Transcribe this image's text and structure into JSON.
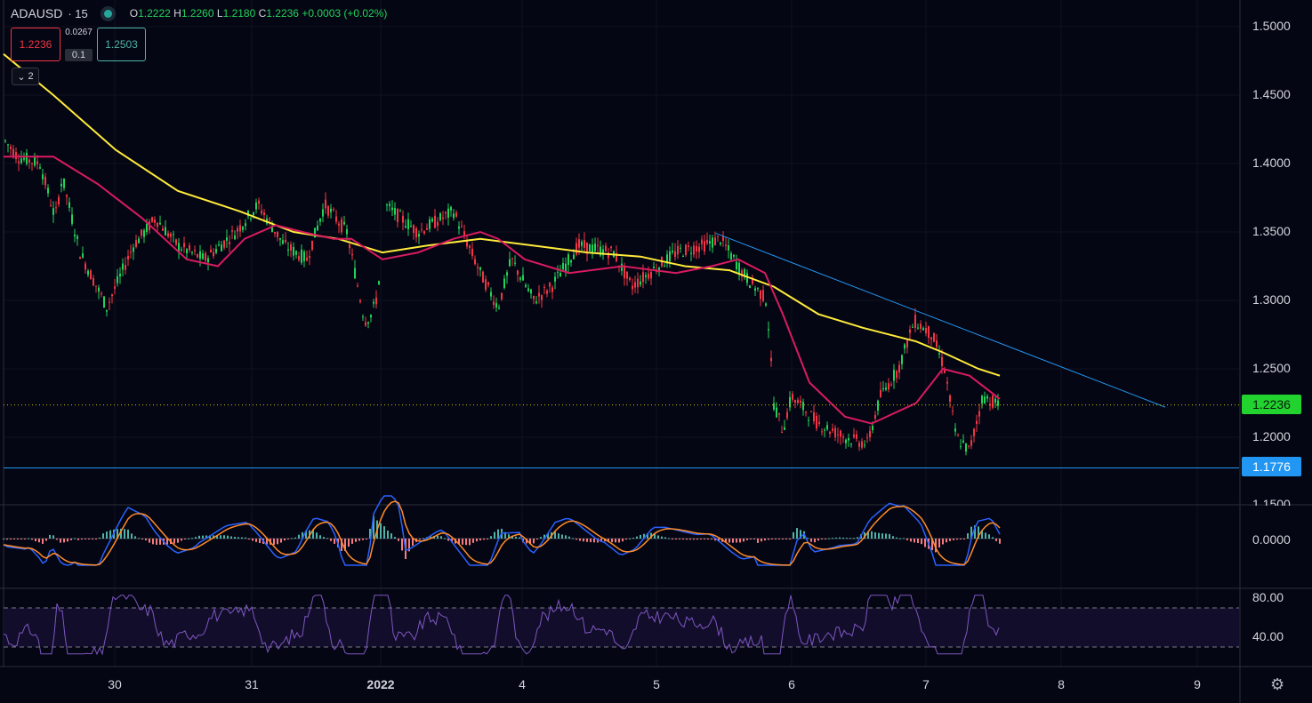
{
  "header": {
    "symbol": "ADAUSD",
    "interval": "· 15",
    "open_label": "O",
    "open": "1.2222",
    "high_label": "H",
    "high": "1.2260",
    "low_label": "L",
    "low": "1.2180",
    "close_label": "C",
    "close": "1.2236",
    "change": "+0.0003 (+0.02%)"
  },
  "trade_panel": {
    "sell_price": "1.2236",
    "spread": "0.0267",
    "quantity": "0.1",
    "buy_price": "1.2503"
  },
  "indicators_collapse": {
    "count": "2"
  },
  "price_axis": [
    "1.5000",
    "1.4500",
    "1.4000",
    "1.3500",
    "1.3000",
    "1.2500",
    "1.2000",
    "1.1500"
  ],
  "price_tags": {
    "last": "1.2236",
    "horizontal_line": "1.1776"
  },
  "macd_axis": "0.0000",
  "rsi_axis": [
    "80.00",
    "40.00"
  ],
  "time_axis": [
    "30",
    "31",
    "2022",
    "4",
    "5",
    "6",
    "7",
    "8",
    "9"
  ],
  "colors": {
    "background": "#050613",
    "up": "#22d35b",
    "down": "#f23645",
    "ma_slow": "#ffeb3b",
    "ma_fast": "#d81b60",
    "trendline": "#2196f3",
    "rsi": "#7e57c2"
  },
  "chart_data": {
    "type": "line",
    "ylim": [
      1.145,
      1.515
    ],
    "x_range": [
      "29 Dec 2021 (approx.)",
      "9 Jan 2022"
    ],
    "last_price": 1.2236,
    "support_line": 1.1776,
    "trendline": {
      "start": [
        "5 Jan (late)",
        1.349
      ],
      "end": [
        "8 Jan (late)",
        1.222
      ]
    },
    "price_path": [
      [
        "start",
        1.418
      ],
      [
        "29 Dec",
        1.405
      ],
      [
        "29 Dec",
        1.36
      ],
      [
        "29 Dec",
        1.39
      ],
      [
        "29 Dec",
        1.335
      ],
      [
        "30 Dec",
        1.295
      ],
      [
        "30 Dec",
        1.34
      ],
      [
        "30 Dec",
        1.36
      ],
      [
        "31 Dec",
        1.34
      ],
      [
        "31 Dec",
        1.33
      ],
      [
        "31 Dec",
        1.37
      ],
      [
        "1 Jan",
        1.34
      ],
      [
        "1 Jan",
        1.285
      ],
      [
        "1 Jan",
        1.305
      ],
      [
        "2 Jan",
        1.37
      ],
      [
        "2 Jan",
        1.35
      ],
      [
        "3 Jan",
        1.365
      ],
      [
        "3 Jan",
        1.32
      ],
      [
        "3 Jan",
        1.295
      ],
      [
        "4 Jan",
        1.32
      ],
      [
        "4 Jan",
        1.34
      ],
      [
        "4 Jan",
        1.31
      ],
      [
        "5 Jan",
        1.325
      ],
      [
        "5 Jan",
        1.345
      ],
      [
        "5 Jan",
        1.32
      ],
      [
        "6 Jan",
        1.295
      ],
      [
        "6 Jan",
        1.22
      ],
      [
        "6 Jan",
        1.205
      ],
      [
        "6 Jan",
        1.19
      ],
      [
        "6 Jan",
        1.23
      ],
      [
        "7 Jan",
        1.285
      ],
      [
        "7 Jan",
        1.275
      ],
      [
        "7 Jan",
        1.23
      ],
      [
        "7 Jan",
        1.19
      ],
      [
        "7 Jan",
        1.2236
      ]
    ],
    "ma_slow": [
      [
        "start",
        1.48
      ],
      [
        "30 Dec",
        1.41
      ],
      [
        "31 Dec",
        1.365
      ],
      [
        "1 Jan",
        1.345
      ],
      [
        "2 Jan",
        1.34
      ],
      [
        "3 Jan",
        1.345
      ],
      [
        "4 Jan",
        1.335
      ],
      [
        "5 Jan",
        1.325
      ],
      [
        "6 Jan",
        1.3
      ],
      [
        "7 Jan",
        1.27
      ],
      [
        "7 Jan (end)",
        1.245
      ]
    ],
    "ma_fast": [
      [
        "29 Dec",
        1.405
      ],
      [
        "30 Dec",
        1.36
      ],
      [
        "30 Dec",
        1.325
      ],
      [
        "31 Dec",
        1.355
      ],
      [
        "31 Dec",
        1.345
      ],
      [
        "1 Jan",
        1.345
      ],
      [
        "2 Jan",
        1.33
      ],
      [
        "3 Jan",
        1.355
      ],
      [
        "4 Jan",
        1.325
      ],
      [
        "5 Jan",
        1.325
      ],
      [
        "6 Jan",
        1.29
      ],
      [
        "6 Jan",
        1.215
      ],
      [
        "7 Jan",
        1.22
      ],
      [
        "7 Jan",
        1.25
      ],
      [
        "7 Jan (end)",
        1.228
      ]
    ]
  }
}
